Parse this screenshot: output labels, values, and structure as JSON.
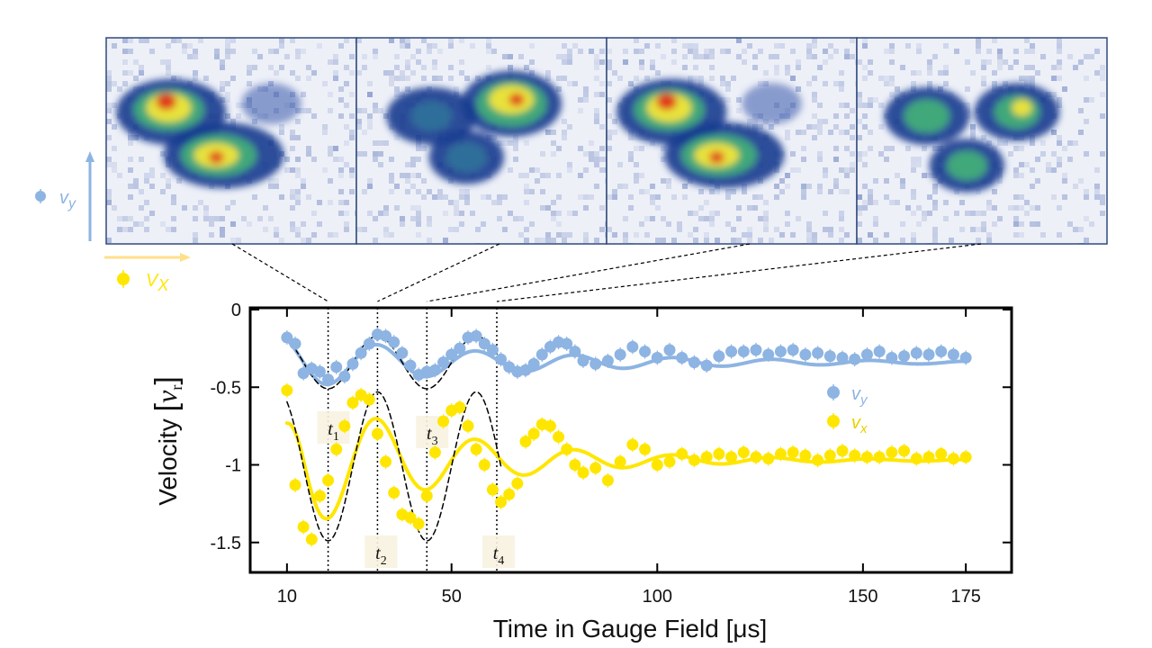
{
  "chart_data": {
    "type": "scatter",
    "xlabel": "Time in Gauge Field [μs]",
    "ylabel": "Velocity",
    "ylabel_unit": "v",
    "ylabel_unit_sub": "r",
    "xlim": [
      5,
      180
    ],
    "ylim": [
      -1.6,
      0
    ],
    "xticks": [
      10,
      50,
      100,
      150,
      175
    ],
    "yticks": [
      0,
      -0.5,
      -1,
      -1.5
    ],
    "ytick_labels": [
      "0",
      "-0.5",
      "-1",
      "-1.5"
    ],
    "time_markers": [
      {
        "label": "t",
        "sub": "1",
        "x": 20
      },
      {
        "label": "t",
        "sub": "2",
        "x": 32
      },
      {
        "label": "t",
        "sub": "3",
        "x": 44
      },
      {
        "label": "t",
        "sub": "4",
        "x": 61
      }
    ],
    "series": [
      {
        "name": "v",
        "sub": "y",
        "color": "#8DB4E2",
        "x": [
          10,
          12,
          14,
          16,
          18,
          20,
          22,
          24,
          26,
          28,
          30,
          32,
          34,
          36,
          38,
          40,
          42,
          44,
          46,
          48,
          50,
          52,
          54,
          56,
          58,
          60,
          62,
          64,
          66,
          68,
          70,
          72,
          74,
          76,
          78,
          80,
          82,
          85,
          88,
          91,
          94,
          97,
          100,
          103,
          106,
          109,
          112,
          115,
          118,
          121,
          124,
          127,
          130,
          133,
          136,
          139,
          142,
          145,
          148,
          151,
          154,
          157,
          160,
          163,
          166,
          169,
          172,
          175
        ],
        "y": [
          -0.18,
          -0.22,
          -0.41,
          -0.38,
          -0.4,
          -0.45,
          -0.37,
          -0.43,
          -0.35,
          -0.28,
          -0.22,
          -0.16,
          -0.17,
          -0.21,
          -0.28,
          -0.36,
          -0.42,
          -0.4,
          -0.39,
          -0.34,
          -0.29,
          -0.25,
          -0.18,
          -0.17,
          -0.22,
          -0.26,
          -0.32,
          -0.37,
          -0.4,
          -0.39,
          -0.35,
          -0.29,
          -0.24,
          -0.21,
          -0.22,
          -0.27,
          -0.33,
          -0.35,
          -0.33,
          -0.29,
          -0.24,
          -0.27,
          -0.31,
          -0.26,
          -0.31,
          -0.34,
          -0.36,
          -0.3,
          -0.27,
          -0.27,
          -0.26,
          -0.29,
          -0.27,
          -0.26,
          -0.29,
          -0.28,
          -0.3,
          -0.31,
          -0.32,
          -0.29,
          -0.27,
          -0.31,
          -0.3,
          -0.28,
          -0.29,
          -0.27,
          -0.29,
          -0.31
        ]
      },
      {
        "name": "v",
        "sub": "x",
        "color": "#FFE600",
        "x": [
          10,
          12,
          14,
          16,
          18,
          20,
          22,
          24,
          26,
          28,
          30,
          32,
          34,
          36,
          38,
          40,
          42,
          44,
          46,
          48,
          50,
          52,
          54,
          56,
          58,
          60,
          62,
          64,
          66,
          68,
          70,
          72,
          74,
          76,
          78,
          80,
          82,
          85,
          88,
          91,
          94,
          97,
          100,
          103,
          106,
          109,
          112,
          115,
          118,
          121,
          124,
          127,
          130,
          133,
          136,
          139,
          142,
          145,
          148,
          151,
          154,
          157,
          160,
          163,
          166,
          169,
          172,
          175
        ],
        "y": [
          -0.52,
          -1.13,
          -1.4,
          -1.48,
          -1.2,
          -1.1,
          -0.9,
          -0.75,
          -0.6,
          -0.55,
          -0.58,
          -0.8,
          -0.98,
          -1.18,
          -1.32,
          -1.34,
          -1.38,
          -1.2,
          -0.92,
          -0.72,
          -0.65,
          -0.63,
          -0.75,
          -0.9,
          -1.0,
          -1.16,
          -1.24,
          -1.19,
          -1.12,
          -0.85,
          -0.8,
          -0.74,
          -0.75,
          -0.82,
          -0.9,
          -1.0,
          -1.05,
          -1.02,
          -1.1,
          -0.98,
          -0.87,
          -0.9,
          -1.0,
          -0.98,
          -0.93,
          -0.97,
          -0.95,
          -0.93,
          -0.95,
          -0.92,
          -0.95,
          -0.96,
          -0.93,
          -0.92,
          -0.94,
          -0.97,
          -0.94,
          -0.91,
          -0.94,
          -0.95,
          -0.95,
          -0.92,
          -0.91,
          -0.96,
          -0.95,
          -0.93,
          -0.96,
          -0.95
        ]
      }
    ],
    "grid": false
  },
  "panels": {
    "velocity_arrows": {
      "vy": {
        "name": "v",
        "sub": "y",
        "color": "#8DB4E2"
      },
      "vx": {
        "name": "V",
        "sub": "X",
        "color": "#FFE600"
      }
    },
    "images": [
      {
        "blobs": "diagonal-two"
      },
      {
        "blobs": "three-horizontal"
      },
      {
        "blobs": "diagonal-two"
      },
      {
        "blobs": "three-small"
      }
    ]
  }
}
